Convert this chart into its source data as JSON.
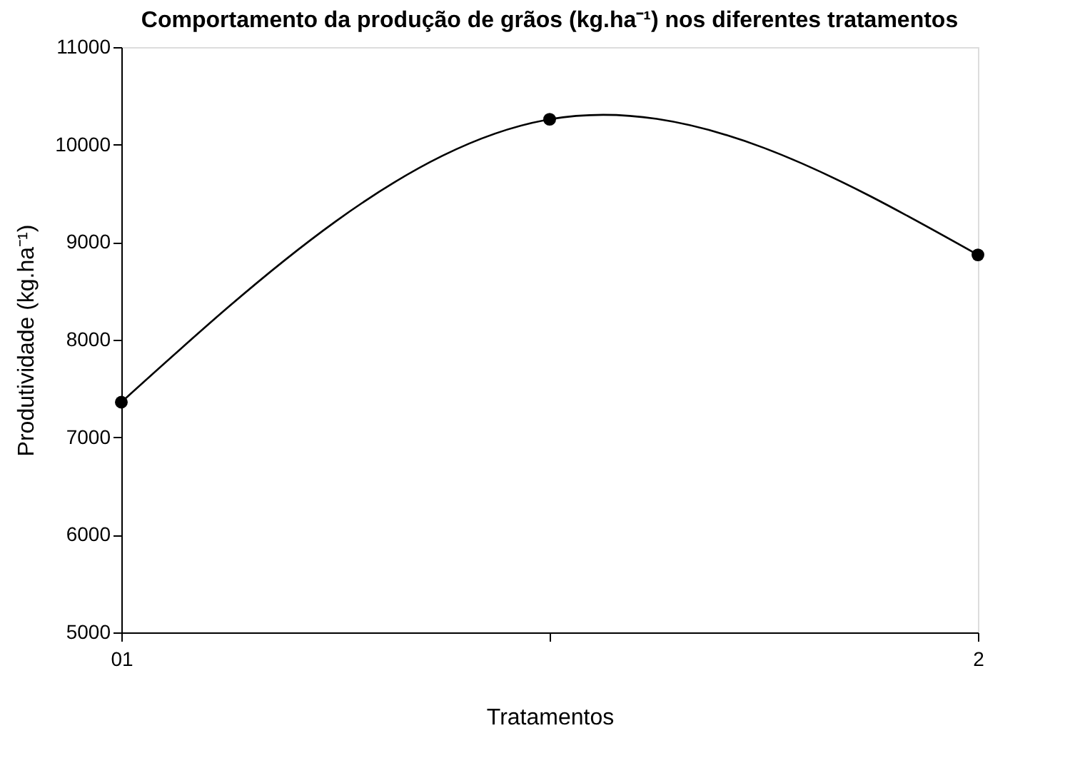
{
  "chart_data": {
    "type": "line",
    "title": "Comportamento da produção de grãos (kg.ha⁻¹) nos diferentes tratamentos",
    "xlabel": "Tratamentos",
    "ylabel": "Produtividade (kg.ha⁻¹)",
    "categories": [
      "01",
      null,
      "2"
    ],
    "ylim": [
      5000,
      11000
    ],
    "yticks": [
      5000,
      6000,
      7000,
      8000,
      9000,
      10000,
      11000
    ],
    "grid": false,
    "marker": "circle",
    "series": [
      {
        "color": "#000000",
        "values": [
          7360,
          10260,
          8870
        ]
      }
    ]
  }
}
